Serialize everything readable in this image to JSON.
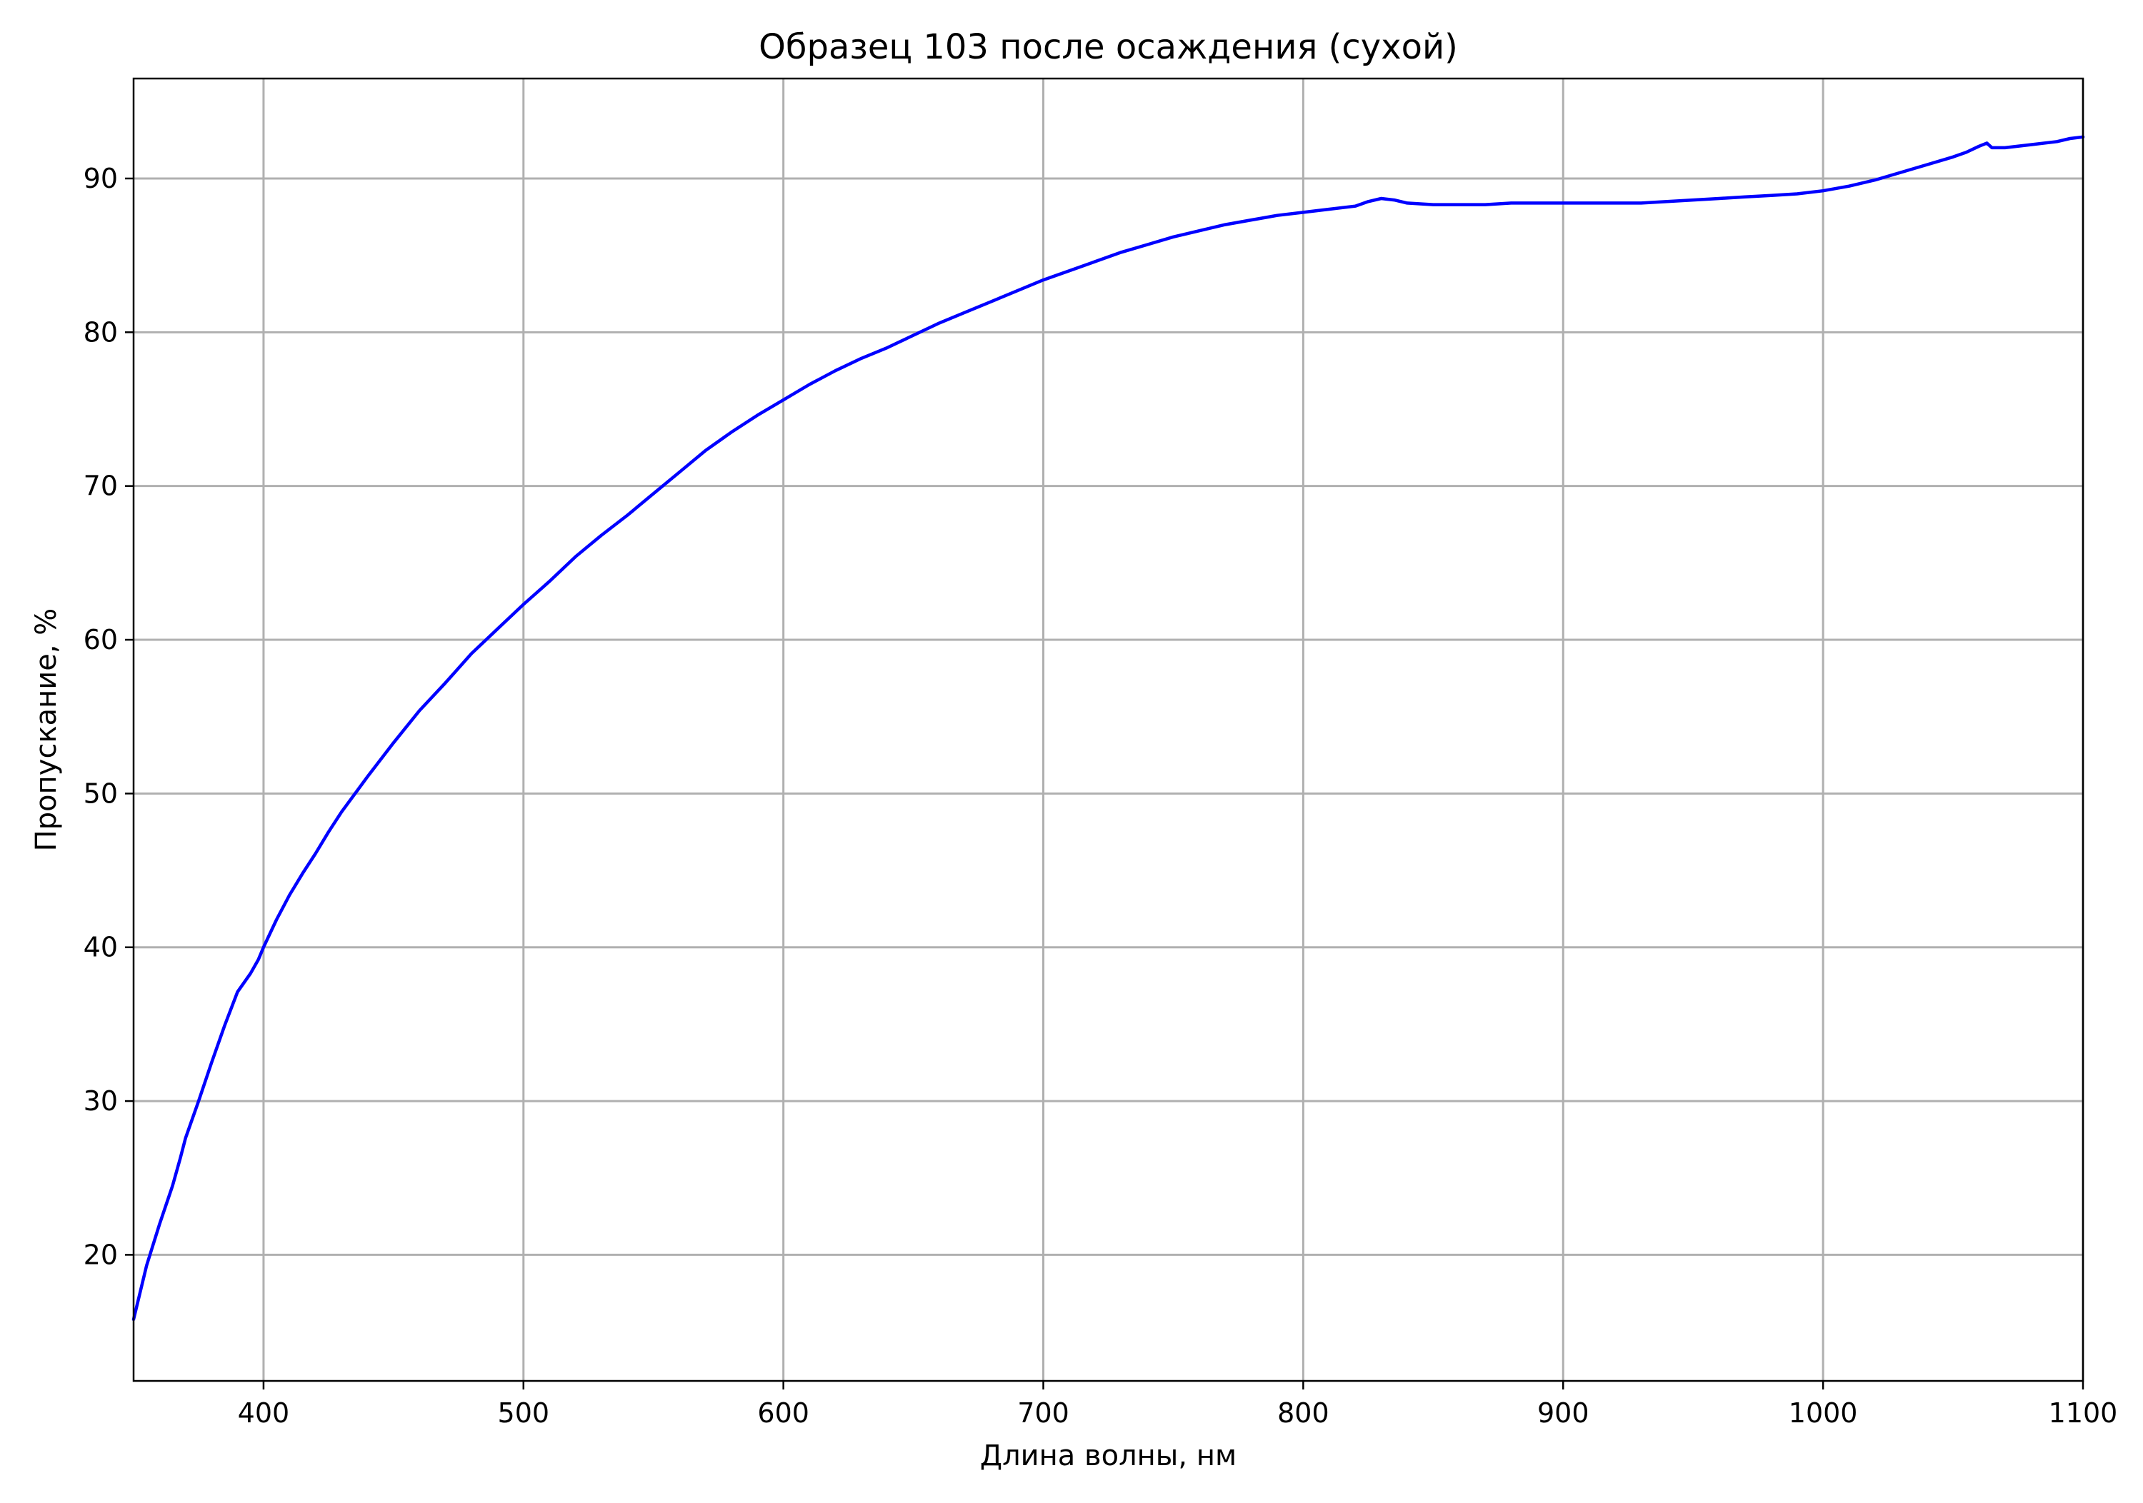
{
  "chart_data": {
    "type": "line",
    "title": "Образец 103 после осаждения (сухой)",
    "xlabel": "Длина волны, нм",
    "ylabel": "Пропускание, %",
    "xlim": [
      350,
      1100
    ],
    "ylim": [
      11.8,
      96.5
    ],
    "xticks": [
      400,
      500,
      600,
      700,
      800,
      900,
      1000,
      1100
    ],
    "yticks": [
      20,
      30,
      40,
      50,
      60,
      70,
      80,
      90
    ],
    "grid": true,
    "legend": "none",
    "series": [
      {
        "color": "#0000ff",
        "x": [
          350,
          355,
          360,
          365,
          368,
          370,
          375,
          380,
          385,
          390,
          395,
          398,
          400,
          405,
          410,
          415,
          420,
          425,
          430,
          440,
          450,
          460,
          470,
          480,
          490,
          500,
          510,
          520,
          530,
          540,
          550,
          560,
          570,
          580,
          590,
          600,
          610,
          620,
          630,
          640,
          650,
          660,
          670,
          680,
          690,
          700,
          710,
          720,
          730,
          740,
          750,
          760,
          770,
          780,
          790,
          800,
          810,
          820,
          825,
          830,
          835,
          840,
          850,
          860,
          870,
          880,
          890,
          900,
          910,
          920,
          930,
          940,
          950,
          960,
          970,
          980,
          990,
          1000,
          1010,
          1020,
          1030,
          1040,
          1050,
          1055,
          1060,
          1063,
          1065,
          1070,
          1080,
          1090,
          1095,
          1100
        ],
        "y": [
          15.8,
          19.3,
          22.0,
          24.5,
          26.3,
          27.6,
          30.0,
          32.5,
          34.9,
          37.1,
          38.3,
          39.2,
          40.0,
          41.8,
          43.4,
          44.8,
          46.1,
          47.5,
          48.8,
          51.1,
          53.3,
          55.4,
          57.2,
          59.1,
          60.7,
          62.3,
          63.8,
          65.4,
          66.8,
          68.1,
          69.5,
          70.9,
          72.3,
          73.5,
          74.6,
          75.6,
          76.6,
          77.5,
          78.3,
          79.0,
          79.8,
          80.6,
          81.3,
          82.0,
          82.7,
          83.4,
          84.0,
          84.6,
          85.2,
          85.7,
          86.2,
          86.6,
          87.0,
          87.3,
          87.6,
          87.8,
          88.0,
          88.2,
          88.5,
          88.7,
          88.6,
          88.4,
          88.3,
          88.3,
          88.3,
          88.4,
          88.4,
          88.4,
          88.4,
          88.4,
          88.4,
          88.5,
          88.6,
          88.7,
          88.8,
          88.9,
          89.0,
          89.2,
          89.5,
          89.9,
          90.4,
          90.9,
          91.4,
          91.7,
          92.1,
          92.3,
          92.0,
          92.0,
          92.2,
          92.4,
          92.6,
          92.7
        ]
      }
    ]
  }
}
